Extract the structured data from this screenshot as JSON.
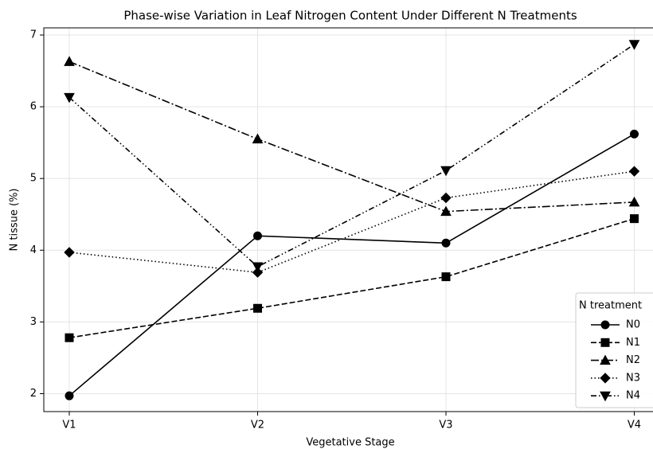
{
  "chart_data": {
    "type": "line",
    "title": "Phase-wise Variation in Leaf Nitrogen Content Under Different N Treatments",
    "x_label": "Vegetative Stage",
    "y_label": "N tissue (%)",
    "categories": [
      "V1",
      "V2",
      "V3",
      "V4"
    ],
    "ylim": [
      1.75,
      7.1
    ],
    "yticks": [
      2,
      3,
      4,
      5,
      6,
      7
    ],
    "grid": true,
    "legend": {
      "title": "N treatment",
      "position": "lower right"
    },
    "series": [
      {
        "name": "N0",
        "color": "#000000",
        "dash": "solid",
        "marker": "circle",
        "values": [
          1.97,
          4.2,
          4.1,
          5.62
        ]
      },
      {
        "name": "N1",
        "color": "#000000",
        "dash": "dashed",
        "marker": "square",
        "values": [
          2.78,
          3.19,
          3.63,
          4.44
        ]
      },
      {
        "name": "N2",
        "color": "#000000",
        "dash": "dashdot",
        "marker": "triangle-up",
        "values": [
          6.63,
          5.55,
          4.54,
          4.67
        ]
      },
      {
        "name": "N3",
        "color": "#000000",
        "dash": "dotted",
        "marker": "diamond",
        "values": [
          3.97,
          3.69,
          4.73,
          5.1
        ]
      },
      {
        "name": "N4",
        "color": "#000000",
        "dash": "dashdotdot",
        "marker": "triangle-down",
        "values": [
          6.13,
          3.77,
          5.11,
          6.87
        ]
      }
    ]
  }
}
